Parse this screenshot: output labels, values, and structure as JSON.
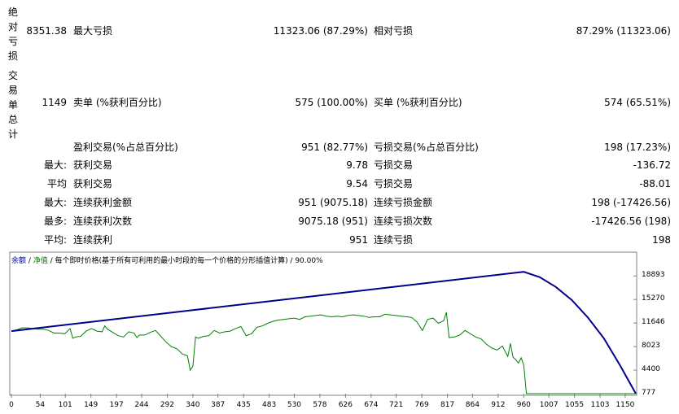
{
  "stats": {
    "abs_loss": {
      "label": "绝\n对\n亏\n损",
      "value": "8351.38"
    },
    "max_drawdown": {
      "label": "最大亏损",
      "value": "11323.06 (87.29%)"
    },
    "rel_drawdown": {
      "label": "相对亏损",
      "value": "87.29% (11323.06)"
    },
    "total_trades": {
      "label": "交\n易\n单\n总\n计",
      "value": "1149"
    },
    "short_trades": {
      "label": "卖单 (%获利百分比)",
      "value": "575 (100.00%)"
    },
    "long_trades": {
      "label": "买单 (%获利百分比)",
      "value": "574 (65.51%)"
    },
    "profit_trades": {
      "label": "盈利交易(%占总百分比)",
      "value": "951 (82.77%)"
    },
    "loss_trades": {
      "label": "亏损交易(%占总百分比)",
      "value": "198 (17.23%)"
    },
    "rows": [
      {
        "prefix": "最大:",
        "left_label": "获利交易",
        "left_value": "9.78",
        "right_label": "亏损交易",
        "right_value": "-136.72"
      },
      {
        "prefix": "平均",
        "left_label": "获利交易",
        "left_value": "9.54",
        "right_label": "亏损交易",
        "right_value": "-88.01"
      },
      {
        "prefix": "最大:",
        "left_label": "连续获利金额",
        "left_value": "951 (9075.18)",
        "right_label": "连续亏损金额",
        "right_value": "198 (-17426.56)"
      },
      {
        "prefix": "最多:",
        "left_label": "连续获利次数",
        "left_value": "9075.18 (951)",
        "right_label": "连续亏损次数",
        "right_value": "-17426.56 (198)"
      },
      {
        "prefix": "平均:",
        "left_label": "连续获利",
        "left_value": "951",
        "right_label": "连续亏损",
        "right_value": "198"
      }
    ]
  },
  "chart_data": {
    "type": "line",
    "legend": {
      "balance": "余额",
      "sep1": " / ",
      "equity": "净值",
      "rest": " / 每个即时价格(基于所有可利用的最小时段的每一个价格的分形插值计算) / 90.00%"
    },
    "x_ticks": [
      "0",
      "54",
      "101",
      "149",
      "197",
      "244",
      "292",
      "340",
      "387",
      "435",
      "483",
      "530",
      "578",
      "626",
      "674",
      "721",
      "769",
      "817",
      "864",
      "912",
      "960",
      "1007",
      "1055",
      "1103",
      "1150"
    ],
    "y_ticks": [
      "18893",
      "15270",
      "11646",
      "8023",
      "4400",
      "777"
    ],
    "xlim": [
      0,
      1170
    ],
    "ylim": [
      777,
      20300
    ],
    "colors": {
      "balance": "#00008b",
      "equity": "#008000",
      "border": "#808080"
    },
    "series": [
      {
        "name": "余额",
        "x": [
          0,
          960,
          990,
          1020,
          1050,
          1080,
          1110,
          1140,
          1170
        ],
        "y": [
          10400,
          19520,
          18700,
          17200,
          15200,
          12500,
          9300,
          5200,
          0
        ]
      },
      {
        "name": "净值",
        "x": [
          0,
          10,
          20,
          30,
          40,
          50,
          60,
          70,
          80,
          90,
          100,
          110,
          115,
          120,
          130,
          140,
          150,
          160,
          170,
          175,
          180,
          190,
          200,
          210,
          220,
          230,
          235,
          240,
          250,
          260,
          270,
          280,
          290,
          300,
          310,
          320,
          330,
          335,
          340,
          345,
          350,
          360,
          370,
          380,
          390,
          400,
          410,
          420,
          430,
          440,
          450,
          460,
          470,
          480,
          490,
          500,
          510,
          520,
          530,
          540,
          550,
          560,
          570,
          580,
          590,
          600,
          610,
          620,
          630,
          640,
          650,
          660,
          670,
          680,
          690,
          700,
          710,
          720,
          730,
          740,
          750,
          760,
          770,
          780,
          790,
          800,
          810,
          815,
          820,
          830,
          840,
          850,
          860,
          870,
          880,
          890,
          900,
          910,
          920,
          930,
          935,
          940,
          945,
          950,
          955,
          960,
          965,
          1170
        ],
        "y": [
          10400,
          10600,
          10900,
          10900,
          10800,
          10700,
          10700,
          10500,
          10100,
          10100,
          10000,
          10800,
          9300,
          9500,
          9600,
          10400,
          10800,
          10400,
          10300,
          11200,
          10700,
          10200,
          9700,
          9500,
          10300,
          10100,
          9400,
          9800,
          9800,
          10200,
          10500,
          9600,
          8700,
          8000,
          7700,
          6900,
          6600,
          4400,
          5000,
          9500,
          9300,
          9600,
          9700,
          10500,
          10100,
          10300,
          10400,
          10800,
          11100,
          9700,
          10000,
          11000,
          11200,
          11600,
          11900,
          12100,
          12200,
          12300,
          12400,
          12200,
          12600,
          12700,
          12800,
          12900,
          12700,
          12600,
          12700,
          12600,
          12800,
          12900,
          12800,
          12700,
          12500,
          12600,
          12600,
          13000,
          12900,
          12800,
          12700,
          12600,
          12500,
          11800,
          10500,
          12200,
          12400,
          11600,
          12000,
          13300,
          9400,
          9500,
          9800,
          10500,
          10000,
          9500,
          9200,
          8400,
          7800,
          7500,
          8100,
          6500,
          8500,
          6400,
          6000,
          5500,
          6300,
          5200,
          777,
          777
        ]
      }
    ]
  }
}
